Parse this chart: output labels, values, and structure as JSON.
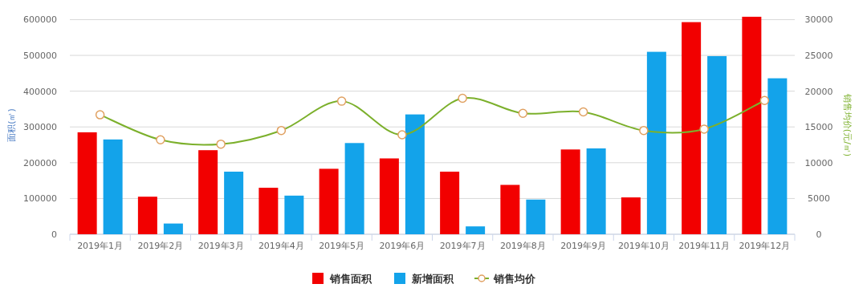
{
  "chart_data": {
    "type": "bar",
    "categories": [
      "2019年1月",
      "2019年2月",
      "2019年3月",
      "2019年4月",
      "2019年5月",
      "2019年6月",
      "2019年7月",
      "2019年8月",
      "2019年9月",
      "2019年10月",
      "2019年11月",
      "2019年12月"
    ],
    "series": [
      {
        "name": "销售面积",
        "color": "#f20000",
        "values": [
          285000,
          105000,
          235000,
          130000,
          183000,
          212000,
          175000,
          138000,
          237000,
          103000,
          593000,
          608000
        ]
      },
      {
        "name": "新增面积",
        "color": "#13a3ea",
        "values": [
          265000,
          30000,
          175000,
          108000,
          255000,
          335000,
          22000,
          97000,
          240000,
          510000,
          498000,
          436000
        ]
      },
      {
        "name": "销售均价",
        "type": "line",
        "axis": "y2",
        "color": "#7cb02c",
        "marker": "circle",
        "values": [
          16700,
          13200,
          12600,
          14500,
          18600,
          13900,
          19000,
          16900,
          17100,
          14500,
          14700,
          18700
        ]
      }
    ],
    "ylabel": "面积(㎡)",
    "y2label": "销售均价(元/㎡)",
    "ylim": [
      0,
      610000
    ],
    "yticks": [
      0,
      100000,
      200000,
      300000,
      400000,
      500000,
      600000
    ],
    "y2lim": [
      0,
      30500
    ],
    "y2ticks": [
      0,
      5000,
      10000,
      15000,
      20000,
      25000,
      30000
    ],
    "grid": "y",
    "legend": "bottom"
  }
}
